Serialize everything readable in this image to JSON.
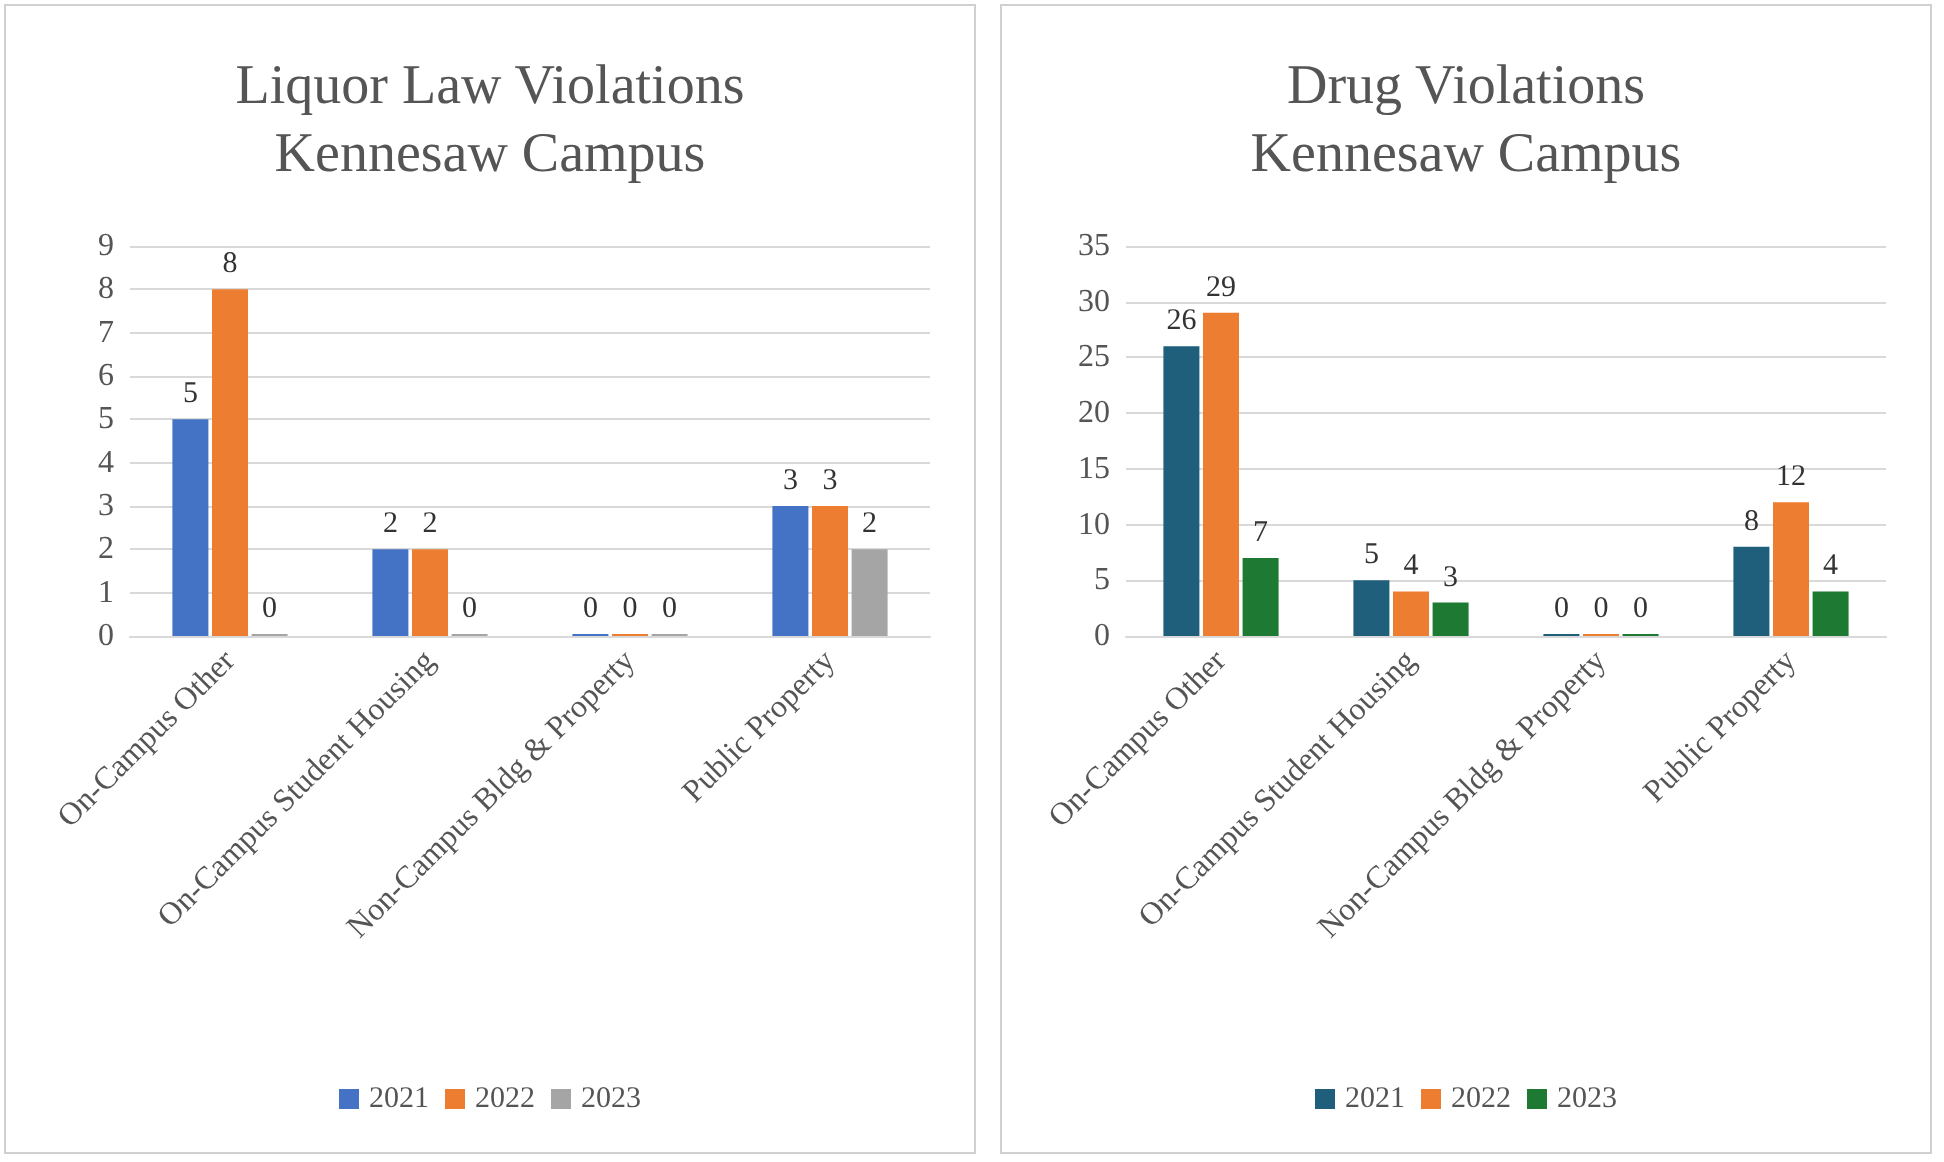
{
  "chart_data": [
    {
      "type": "bar",
      "title": "Liquor Law Violations\nKennesaw Campus",
      "categories": [
        "On-Campus Other",
        "On-Campus Student Housing",
        "Non-Campus Bldg & Property",
        "Public Property"
      ],
      "series": [
        {
          "name": "2021",
          "color": "#4472c4",
          "values": [
            5,
            2,
            0,
            3
          ]
        },
        {
          "name": "2022",
          "color": "#ed7d31",
          "values": [
            8,
            2,
            0,
            3
          ]
        },
        {
          "name": "2023",
          "color": "#a5a5a5",
          "values": [
            0,
            0,
            0,
            2
          ]
        }
      ],
      "ylim": [
        0,
        9
      ],
      "yticks": [
        0,
        1,
        2,
        3,
        4,
        5,
        6,
        7,
        8,
        9
      ],
      "grid": "y",
      "legend": "bottom",
      "data_labels": true
    },
    {
      "type": "bar",
      "title": "Drug Violations\nKennesaw Campus",
      "categories": [
        "On-Campus Other",
        "On-Campus Student Housing",
        "Non-Campus Bldg & Property",
        "Public Property"
      ],
      "series": [
        {
          "name": "2021",
          "color": "#1f5f7b",
          "values": [
            26,
            5,
            0,
            8
          ]
        },
        {
          "name": "2022",
          "color": "#ed7d31",
          "values": [
            29,
            4,
            0,
            12
          ]
        },
        {
          "name": "2023",
          "color": "#1e7a33",
          "values": [
            7,
            3,
            0,
            4
          ]
        }
      ],
      "ylim": [
        0,
        35
      ],
      "yticks": [
        0,
        5,
        10,
        15,
        20,
        25,
        30,
        35
      ],
      "grid": "y",
      "legend": "bottom",
      "data_labels": true
    }
  ]
}
